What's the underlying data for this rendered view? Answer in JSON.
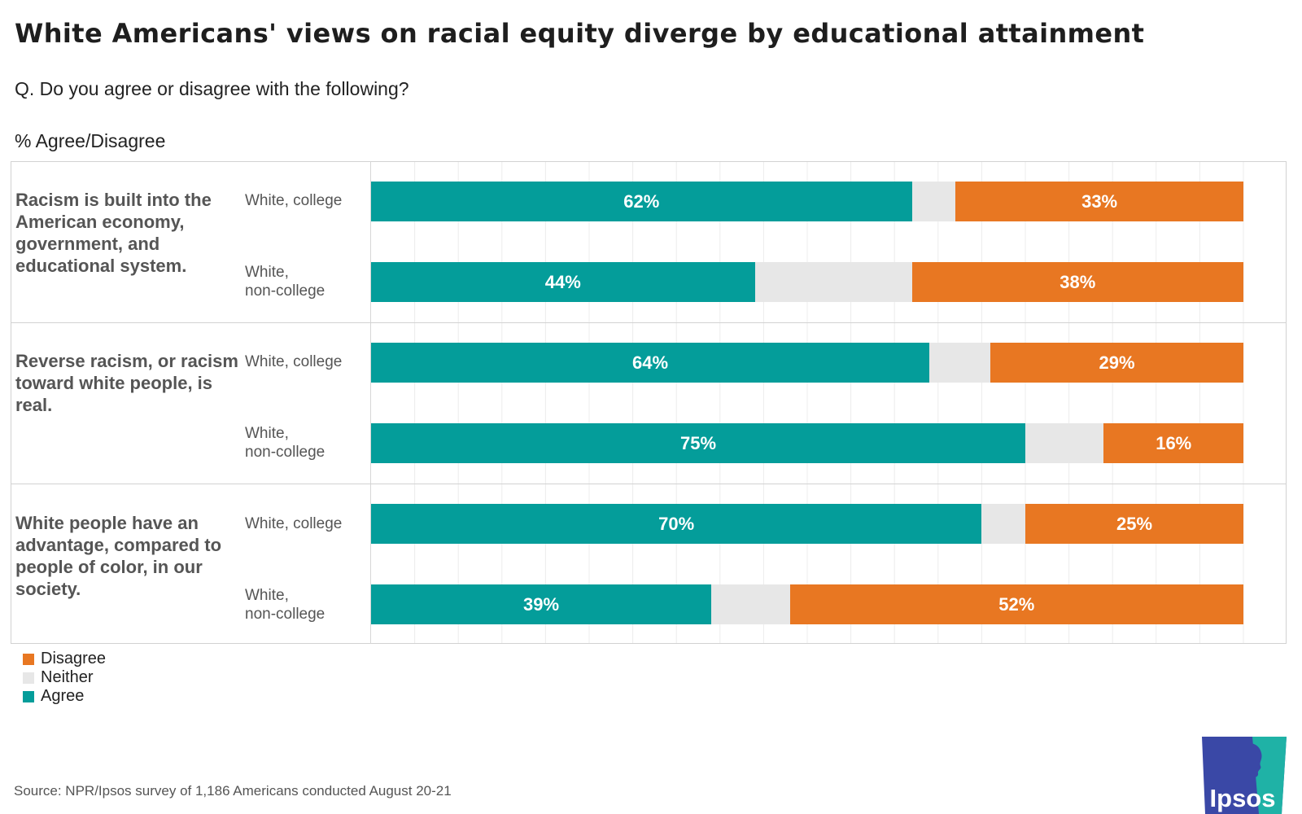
{
  "title": "White Americans' views on racial equity diverge by educational attainment",
  "subtitle": "Q. Do you agree or disagree with the following?",
  "unit_label": "% Agree/Disagree",
  "source": "Source: NPR/Ipsos survey of 1,186 Americans conducted August 20-21",
  "logo_text": "Ipsos",
  "colors": {
    "agree": "#049d9a",
    "neither": "#e7e7e7",
    "disagree": "#e87722",
    "grid": "#ececec"
  },
  "legend": [
    {
      "key": "disagree",
      "label": "Disagree"
    },
    {
      "key": "neither",
      "label": "Neither"
    },
    {
      "key": "agree",
      "label": "Agree"
    }
  ],
  "chart_data": {
    "type": "bar",
    "orientation": "horizontal",
    "stacked": true,
    "xlim": [
      0,
      100
    ],
    "grid": true,
    "legend_position": "bottom-left",
    "groups": [
      {
        "question": "Racism is built into the American economy, government, and educational system.",
        "rows": [
          {
            "label_lines": [
              "White, college"
            ],
            "agree": 62,
            "neither": 5,
            "disagree": 33,
            "labels": {
              "agree": "62%",
              "disagree": "33%"
            }
          },
          {
            "label_lines": [
              "White,",
              "non-college"
            ],
            "agree": 44,
            "neither": 18,
            "disagree": 38,
            "labels": {
              "agree": "44%",
              "disagree": "38%"
            }
          }
        ]
      },
      {
        "question": "Reverse racism, or racism toward white people, is real.",
        "rows": [
          {
            "label_lines": [
              "White, college"
            ],
            "agree": 64,
            "neither": 7,
            "disagree": 29,
            "labels": {
              "agree": "64%",
              "disagree": "29%"
            }
          },
          {
            "label_lines": [
              "White,",
              "non-college"
            ],
            "agree": 75,
            "neither": 9,
            "disagree": 16,
            "labels": {
              "agree": "75%",
              "disagree": "16%"
            }
          }
        ]
      },
      {
        "question": "White people have an advantage, compared to people of color, in our society.",
        "rows": [
          {
            "label_lines": [
              "White, college"
            ],
            "agree": 70,
            "neither": 5,
            "disagree": 25,
            "labels": {
              "agree": "70%",
              "disagree": "25%"
            }
          },
          {
            "label_lines": [
              "White,",
              "non-college"
            ],
            "agree": 39,
            "neither": 9,
            "disagree": 52,
            "labels": {
              "agree": "39%",
              "disagree": "52%"
            }
          }
        ]
      }
    ]
  }
}
